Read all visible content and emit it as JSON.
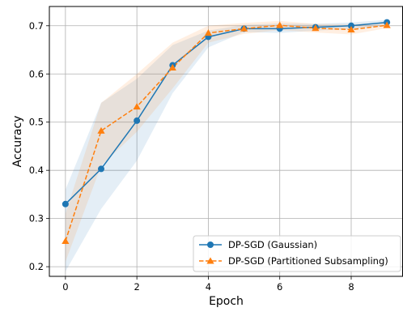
{
  "chart_data": {
    "type": "line",
    "xlabel": "Epoch",
    "ylabel": "Accuracy",
    "xlim": [
      -0.45,
      9.45
    ],
    "ylim": [
      0.18,
      0.74
    ],
    "xticks": [
      0,
      2,
      4,
      6,
      8
    ],
    "yticks": [
      0.2,
      0.3,
      0.4,
      0.5,
      0.6,
      0.7
    ],
    "x": [
      0,
      1,
      2,
      3,
      4,
      5,
      6,
      7,
      8,
      9
    ],
    "grid": true,
    "legend_position": "lower-right",
    "series": [
      {
        "name": "DP-SGD (Gaussian)",
        "color": "#1f77b4",
        "marker": "circle",
        "linestyle": "solid",
        "values": [
          0.33,
          0.403,
          0.503,
          0.618,
          0.677,
          0.694,
          0.694,
          0.697,
          0.7,
          0.707
        ],
        "band_upper": [
          0.36,
          0.54,
          0.59,
          0.66,
          0.69,
          0.702,
          0.705,
          0.704,
          0.707,
          0.712
        ],
        "band_lower": [
          0.19,
          0.32,
          0.42,
          0.56,
          0.655,
          0.687,
          0.685,
          0.69,
          0.693,
          0.7
        ]
      },
      {
        "name": "DP-SGD (Partitioned Subsampling)",
        "color": "#ff7f0e",
        "marker": "triangle",
        "linestyle": "dashed",
        "values": [
          0.253,
          0.482,
          0.532,
          0.613,
          0.685,
          0.694,
          0.701,
          0.695,
          0.692,
          0.701
        ],
        "band_upper": [
          0.31,
          0.54,
          0.6,
          0.665,
          0.7,
          0.706,
          0.71,
          0.704,
          0.703,
          0.707
        ],
        "band_lower": [
          0.21,
          0.41,
          0.48,
          0.57,
          0.665,
          0.683,
          0.691,
          0.686,
          0.682,
          0.695
        ]
      }
    ]
  }
}
